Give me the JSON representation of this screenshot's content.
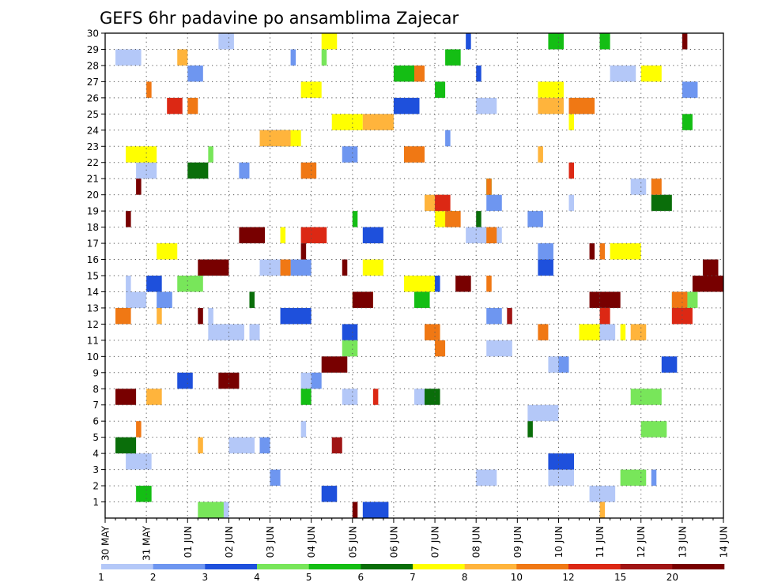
{
  "chart_data": {
    "type": "heatmap",
    "title": "GEFS 6hr padavine po ansamblima Zajecar",
    "xlabel": "",
    "ylabel": "",
    "x_tick_labels": [
      "30 MAY",
      "31 MAY",
      "01 JUN",
      "02 JUN",
      "03 JUN",
      "04 JUN",
      "05 JUN",
      "06 JUN",
      "07 JUN",
      "08 JUN",
      "09 JUN",
      "10 JUN",
      "11 JUN",
      "12 JUN",
      "13 JUN",
      "14 JUN"
    ],
    "y_tick_labels": [
      "1",
      "2",
      "3",
      "4",
      "5",
      "6",
      "7",
      "8",
      "9",
      "10",
      "11",
      "12",
      "13",
      "14",
      "15",
      "16",
      "17",
      "18",
      "19",
      "20",
      "21",
      "22",
      "23",
      "24",
      "25",
      "26",
      "27",
      "28",
      "29",
      "30"
    ],
    "ylim": [
      0,
      30
    ],
    "grid": true,
    "colorbar": {
      "labels": [
        "1",
        "2",
        "3",
        "4",
        "5",
        "6",
        "7",
        "8",
        "10",
        "12",
        "15",
        "20"
      ],
      "colors": [
        "#b4c8f8",
        "#6e96f0",
        "#1e50dc",
        "#78e65a",
        "#14be14",
        "#0a6e0a",
        "#ffff00",
        "#ffb43c",
        "#f07814",
        "#dc2814",
        "#a01414",
        "#780000"
      ]
    },
    "cells": [
      [
        1,
        1,
        6
      ],
      [
        1,
        2,
        1
      ],
      [
        1,
        1,
        15
      ],
      [
        1,
        1,
        14
      ],
      [
        1,
        1,
        13
      ],
      [
        1,
        2,
        12
      ],
      [
        1,
        1,
        20
      ],
      [
        1,
        2,
        9
      ],
      [
        1,
        3,
        8
      ],
      [
        1,
        4,
        8
      ],
      [
        1,
        3,
        10
      ],
      [
        1,
        6,
        7
      ],
      [
        1,
        4,
        3
      ],
      [
        1,
        5,
        3
      ],
      [
        1,
        5,
        2
      ],
      [
        1,
        5,
        4
      ],
      [
        1,
        5,
        5
      ],
      [
        1,
        5,
        11
      ],
      [
        1,
        5,
        12
      ],
      [
        1,
        4,
        14
      ],
      [
        1,
        4,
        16
      ],
      [
        1,
        7,
        12
      ],
      [
        1,
        7,
        18
      ],
      [
        1,
        3,
        21
      ],
      [
        1,
        4,
        22
      ],
      [
        1,
        6,
        24
      ],
      [
        1,
        4,
        25
      ],
      [
        1,
        4,
        26
      ],
      [
        1,
        5,
        28
      ],
      [
        1,
        5,
        29
      ],
      [
        1,
        3,
        30
      ],
      [
        2,
        1,
        3
      ],
      [
        2,
        2,
        9
      ],
      [
        2,
        2,
        5
      ],
      [
        2,
        2,
        3
      ],
      [
        2,
        2,
        10
      ],
      [
        2,
        3,
        14
      ],
      [
        2,
        4,
        16
      ],
      [
        2,
        3,
        20
      ],
      [
        2,
        3,
        19
      ],
      [
        2,
        3,
        17
      ],
      [
        2,
        3,
        13
      ],
      [
        2,
        2,
        22
      ],
      [
        2,
        3,
        23
      ],
      [
        2,
        1,
        24
      ],
      [
        2,
        2,
        26
      ],
      [
        2,
        3,
        27
      ],
      [
        2,
        3,
        28
      ],
      [
        2,
        1,
        29
      ],
      [
        2,
        2,
        31
      ],
      [
        3,
        1,
        30
      ],
      [
        3,
        1,
        28
      ],
      [
        3,
        3,
        15
      ],
      [
        3,
        3,
        10
      ],
      [
        3,
        5,
        4
      ],
      [
        3,
        3,
        9
      ],
      [
        3,
        3,
        12
      ],
      [
        3,
        3,
        16
      ],
      [
        3,
        5,
        24
      ],
      [
        3,
        5,
        26
      ],
      [
        3,
        3,
        2
      ],
      [
        3,
        5,
        1
      ],
      [
        3,
        4,
        18
      ],
      [
        3,
        6,
        13
      ],
      [
        3,
        5,
        15
      ],
      [
        4,
        1,
        29
      ],
      [
        4,
        1,
        23
      ],
      [
        4,
        5,
        1
      ],
      [
        4,
        5,
        14
      ],
      [
        4,
        5,
        15
      ],
      [
        4,
        6,
        8
      ],
      [
        4,
        5,
        6
      ],
      [
        4,
        5,
        3
      ],
      [
        4,
        3,
        11
      ],
      [
        5,
        3,
        2
      ],
      [
        5,
        3,
        29
      ],
      [
        5,
        3,
        30
      ],
      [
        5,
        2,
        32
      ],
      [
        5,
        1,
        19
      ],
      [
        5,
        1,
        21
      ],
      [
        5,
        2,
        25
      ],
      [
        5,
        3,
        14
      ],
      [
        5,
        2,
        8
      ],
      [
        5,
        4,
        28
      ],
      [
        5,
        2,
        27
      ],
      [
        5,
        2,
        30
      ],
      [
        6,
        1,
        6
      ],
      [
        6,
        1,
        14
      ],
      [
        6,
        1,
        19
      ],
      [
        6,
        4,
        5
      ],
      [
        6,
        4,
        20
      ],
      [
        6,
        4,
        22
      ],
      [
        6,
        3,
        8
      ],
      [
        7,
        1,
        12
      ],
      [
        7,
        1,
        18
      ],
      [
        7,
        1,
        25
      ],
      [
        7,
        4,
        16
      ],
      [
        7,
        6,
        15
      ],
      [
        7,
        6,
        23
      ],
      [
        7,
        6,
        17
      ],
      [
        7,
        6,
        25
      ],
      [
        7,
        4,
        17
      ],
      [
        7,
        5,
        27
      ],
      [
        7,
        4,
        28
      ],
      [
        7,
        4,
        19
      ],
      [
        7,
        4,
        14
      ],
      [
        7,
        3,
        30
      ],
      [
        7,
        4,
        27
      ],
      [
        7,
        4,
        24
      ],
      [
        7,
        4,
        12
      ],
      [
        7,
        2,
        31
      ],
      [
        8,
        1,
        13
      ],
      [
        8,
        1,
        23
      ],
      [
        8,
        3,
        8
      ],
      [
        8,
        1,
        1
      ],
      [
        8,
        1,
        5
      ],
      [
        8,
        6,
        24
      ],
      [
        8,
        6,
        25
      ],
      [
        8,
        3,
        12
      ],
      [
        8,
        5,
        26
      ],
      [
        8,
        4,
        20
      ],
      [
        8,
        2,
        29
      ],
      [
        9,
        1,
        6
      ],
      [
        9,
        1,
        15
      ],
      [
        9,
        2,
        11
      ],
      [
        9,
        2,
        12
      ],
      [
        9,
        3,
        14
      ],
      [
        9,
        3,
        13
      ],
      [
        9,
        2,
        16
      ],
      [
        9,
        3,
        19
      ],
      [
        9,
        2,
        18
      ],
      [
        9,
        2,
        21
      ],
      [
        9,
        1,
        17
      ],
      [
        9,
        2,
        28
      ],
      [
        9,
        3,
        22
      ],
      [
        9,
        4,
        23
      ],
      [
        9,
        5,
        26
      ],
      [
        9,
        1,
        21
      ],
      [
        9,
        1,
        27
      ],
      [
        9,
        2,
        26
      ],
      [
        9,
        3,
        12
      ],
      [
        10,
        1,
        8
      ],
      [
        10,
        2,
        13
      ],
      [
        10,
        4,
        13
      ],
      [
        10,
        5,
        18
      ],
      [
        10,
        3,
        20
      ],
      [
        10,
        1,
        22
      ],
      [
        10,
        3,
        26
      ],
      [
        10,
        2,
        31
      ],
      [
        11,
        1,
        13
      ],
      [
        11,
        2,
        5
      ],
      [
        11,
        1,
        31
      ],
      [
        12,
        1,
        1
      ],
      [
        12,
        1,
        13
      ],
      [
        12,
        4,
        8
      ],
      [
        12,
        4,
        9
      ],
      [
        12,
        5,
        10
      ],
      [
        12,
        1,
        21
      ],
      [
        13,
        6,
        14
      ],
      [
        13,
        6,
        15
      ],
      [
        13,
        6,
        16
      ],
      [
        14,
        1,
        17
      ],
      [
        14,
        1,
        16
      ],
      [
        14,
        4,
        14
      ],
      [
        14,
        3,
        15
      ],
      [
        14,
        1,
        17
      ],
      [
        14,
        1,
        19
      ],
      [
        14,
        3,
        16
      ],
      [
        14,
        5,
        18
      ],
      [
        14,
        1,
        30
      ]
    ]
  }
}
